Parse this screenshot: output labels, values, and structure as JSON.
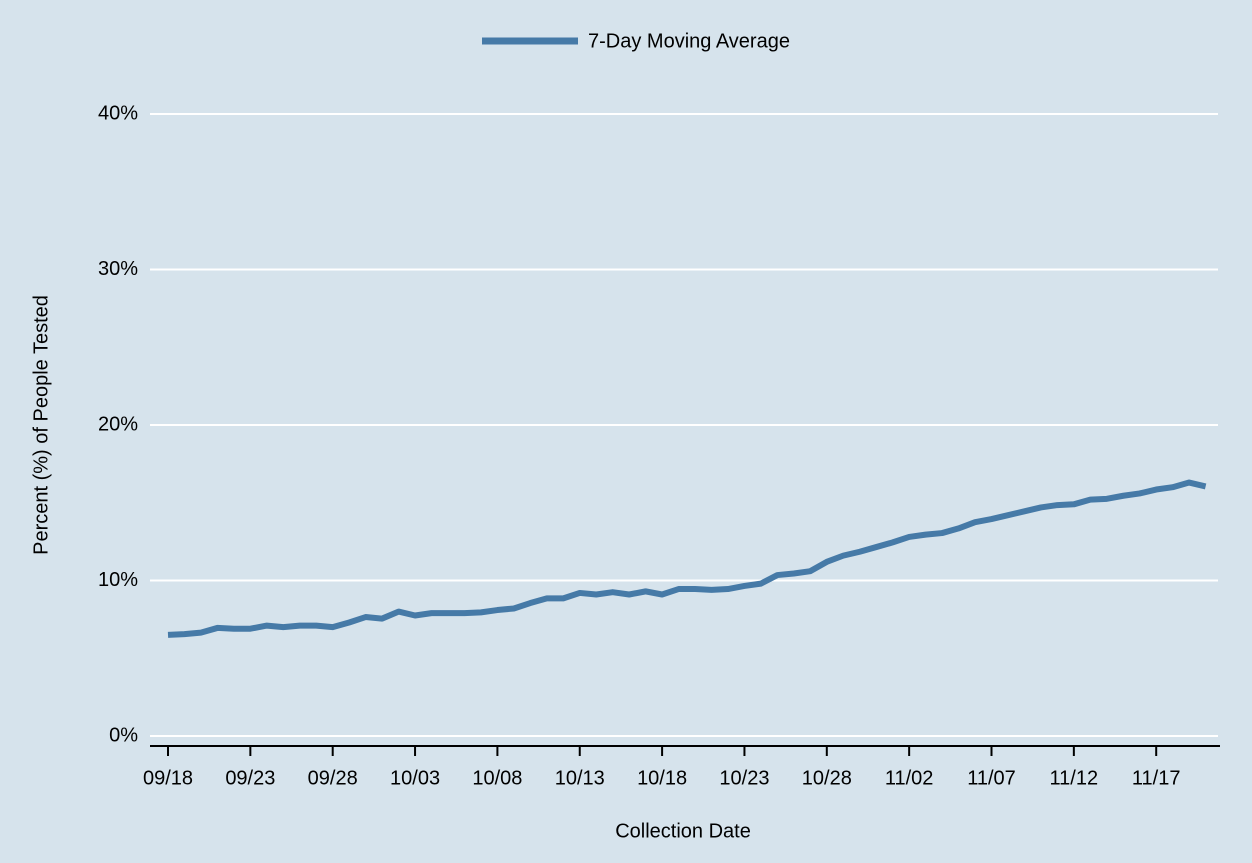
{
  "chart_data": {
    "type": "line",
    "x_label": "Collection Date",
    "y_label": "Percent (%) of People Tested",
    "categories": [
      "09/18",
      null,
      null,
      null,
      null,
      "09/23",
      null,
      null,
      null,
      null,
      "09/28",
      null,
      null,
      null,
      null,
      "10/03",
      null,
      null,
      null,
      null,
      "10/08",
      null,
      null,
      null,
      null,
      "10/13",
      null,
      null,
      null,
      null,
      "10/18",
      null,
      null,
      null,
      null,
      "10/23",
      null,
      null,
      null,
      null,
      "10/28",
      null,
      null,
      null,
      null,
      "11/02",
      null,
      null,
      null,
      null,
      "11/07",
      null,
      null,
      null,
      null,
      "11/12",
      null,
      null,
      null,
      null,
      "11/17",
      null,
      null,
      null
    ],
    "series": [
      {
        "name": "7-Day Moving Average",
        "color": "#467aa7",
        "values": [
          6.5,
          6.55,
          6.65,
          6.95,
          6.9,
          6.9,
          7.1,
          7.0,
          7.1,
          7.1,
          7.0,
          7.3,
          7.65,
          7.55,
          8.0,
          7.75,
          7.9,
          7.9,
          7.9,
          7.95,
          8.1,
          8.2,
          8.55,
          8.85,
          8.85,
          9.2,
          9.1,
          9.25,
          9.1,
          9.3,
          9.1,
          9.45,
          9.45,
          9.4,
          9.45,
          9.65,
          9.8,
          10.35,
          10.45,
          10.6,
          11.2,
          11.6,
          11.85,
          12.15,
          12.45,
          12.8,
          12.95,
          13.05,
          13.35,
          13.75,
          13.95,
          14.2,
          14.45,
          14.7,
          14.85,
          14.9,
          15.2,
          15.25,
          15.45,
          15.6,
          15.85,
          16.0,
          16.3,
          16.05
        ]
      }
    ],
    "ylim": [
      0,
      40
    ],
    "yticks": [
      {
        "value": 0,
        "label": "0%"
      },
      {
        "value": 10,
        "label": "10%"
      },
      {
        "value": 20,
        "label": "20%"
      },
      {
        "value": 30,
        "label": "30%"
      },
      {
        "value": 40,
        "label": "40%"
      }
    ],
    "grid": true,
    "legend": "top"
  }
}
